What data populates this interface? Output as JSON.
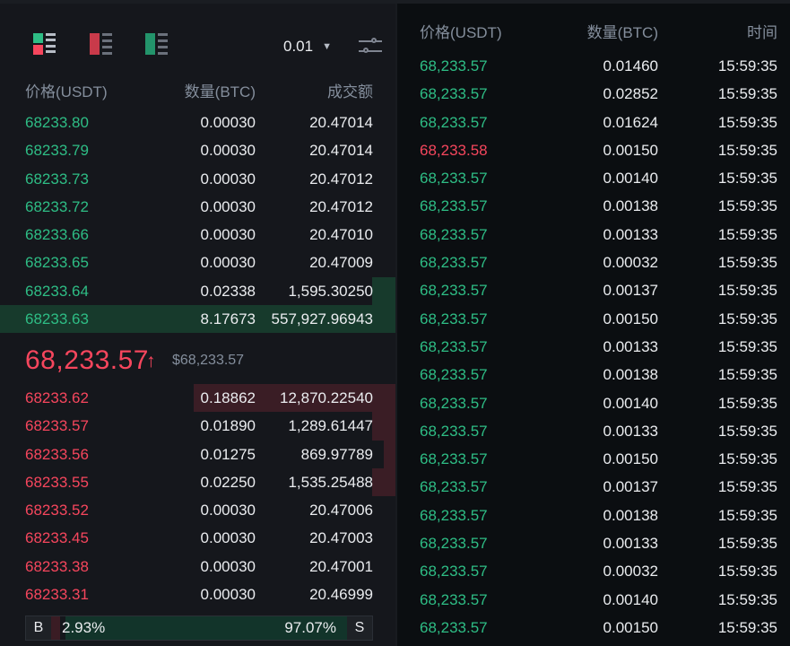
{
  "colors": {
    "buy": "#2ebd85",
    "sell": "#f6465d",
    "background": "#15171c",
    "muted": "#848e9c"
  },
  "toolbar": {
    "modes": [
      "orderbook-both-icon",
      "orderbook-sell-icon",
      "orderbook-buy-icon"
    ],
    "depth_value": "0.01",
    "depth_caret": "▼"
  },
  "orderbook": {
    "headers": {
      "price": "价格(USDT)",
      "qty": "数量(BTC)",
      "total": "成交额"
    },
    "asks": [
      {
        "price": "68233.80",
        "qty": "0.00030",
        "total": "20.47014",
        "depth": 0
      },
      {
        "price": "68233.79",
        "qty": "0.00030",
        "total": "20.47014",
        "depth": 0
      },
      {
        "price": "68233.73",
        "qty": "0.00030",
        "total": "20.47012",
        "depth": 0
      },
      {
        "price": "68233.72",
        "qty": "0.00030",
        "total": "20.47012",
        "depth": 0
      },
      {
        "price": "68233.66",
        "qty": "0.00030",
        "total": "20.47010",
        "depth": 0
      },
      {
        "price": "68233.65",
        "qty": "0.00030",
        "total": "20.47009",
        "depth": 0
      },
      {
        "price": "68233.64",
        "qty": "0.02338",
        "total": "1,595.30250",
        "depth": 0.06
      },
      {
        "price": "68233.63",
        "qty": "8.17673",
        "total": "557,927.96943",
        "depth": 1.0
      }
    ],
    "last_price": "68,233.57",
    "last_arrow": "↑",
    "mark_price": "$68,233.57",
    "bids": [
      {
        "price": "68233.62",
        "qty": "0.18862",
        "total": "12,870.22540",
        "depth": 0.51
      },
      {
        "price": "68233.57",
        "qty": "0.01890",
        "total": "1,289.61447",
        "depth": 0.06
      },
      {
        "price": "68233.56",
        "qty": "0.01275",
        "total": "869.97789",
        "depth": 0.03
      },
      {
        "price": "68233.55",
        "qty": "0.02250",
        "total": "1,535.25488",
        "depth": 0.06
      },
      {
        "price": "68233.52",
        "qty": "0.00030",
        "total": "20.47006",
        "depth": 0
      },
      {
        "price": "68233.45",
        "qty": "0.00030",
        "total": "20.47003",
        "depth": 0
      },
      {
        "price": "68233.38",
        "qty": "0.00030",
        "total": "20.47001",
        "depth": 0
      },
      {
        "price": "68233.31",
        "qty": "0.00030",
        "total": "20.46999",
        "depth": 0
      }
    ],
    "ratio": {
      "buy_label": "B",
      "buy_pct": "2.93%",
      "sell_label": "S",
      "sell_pct": "97.07%",
      "buy_fraction": 0.0293
    }
  },
  "trades": {
    "headers": {
      "price": "价格(USDT)",
      "qty": "数量(BTC)",
      "time": "时间"
    },
    "rows": [
      {
        "price": "68,233.57",
        "qty": "0.01460",
        "time": "15:59:35",
        "side": "buy"
      },
      {
        "price": "68,233.57",
        "qty": "0.02852",
        "time": "15:59:35",
        "side": "buy"
      },
      {
        "price": "68,233.57",
        "qty": "0.01624",
        "time": "15:59:35",
        "side": "buy"
      },
      {
        "price": "68,233.58",
        "qty": "0.00150",
        "time": "15:59:35",
        "side": "sell"
      },
      {
        "price": "68,233.57",
        "qty": "0.00140",
        "time": "15:59:35",
        "side": "buy"
      },
      {
        "price": "68,233.57",
        "qty": "0.00138",
        "time": "15:59:35",
        "side": "buy"
      },
      {
        "price": "68,233.57",
        "qty": "0.00133",
        "time": "15:59:35",
        "side": "buy"
      },
      {
        "price": "68,233.57",
        "qty": "0.00032",
        "time": "15:59:35",
        "side": "buy"
      },
      {
        "price": "68,233.57",
        "qty": "0.00137",
        "time": "15:59:35",
        "side": "buy"
      },
      {
        "price": "68,233.57",
        "qty": "0.00150",
        "time": "15:59:35",
        "side": "buy"
      },
      {
        "price": "68,233.57",
        "qty": "0.00133",
        "time": "15:59:35",
        "side": "buy"
      },
      {
        "price": "68,233.57",
        "qty": "0.00138",
        "time": "15:59:35",
        "side": "buy"
      },
      {
        "price": "68,233.57",
        "qty": "0.00140",
        "time": "15:59:35",
        "side": "buy"
      },
      {
        "price": "68,233.57",
        "qty": "0.00133",
        "time": "15:59:35",
        "side": "buy"
      },
      {
        "price": "68,233.57",
        "qty": "0.00150",
        "time": "15:59:35",
        "side": "buy"
      },
      {
        "price": "68,233.57",
        "qty": "0.00137",
        "time": "15:59:35",
        "side": "buy"
      },
      {
        "price": "68,233.57",
        "qty": "0.00138",
        "time": "15:59:35",
        "side": "buy"
      },
      {
        "price": "68,233.57",
        "qty": "0.00133",
        "time": "15:59:35",
        "side": "buy"
      },
      {
        "price": "68,233.57",
        "qty": "0.00032",
        "time": "15:59:35",
        "side": "buy"
      },
      {
        "price": "68,233.57",
        "qty": "0.00140",
        "time": "15:59:35",
        "side": "buy"
      },
      {
        "price": "68,233.57",
        "qty": "0.00150",
        "time": "15:59:35",
        "side": "buy"
      }
    ]
  }
}
